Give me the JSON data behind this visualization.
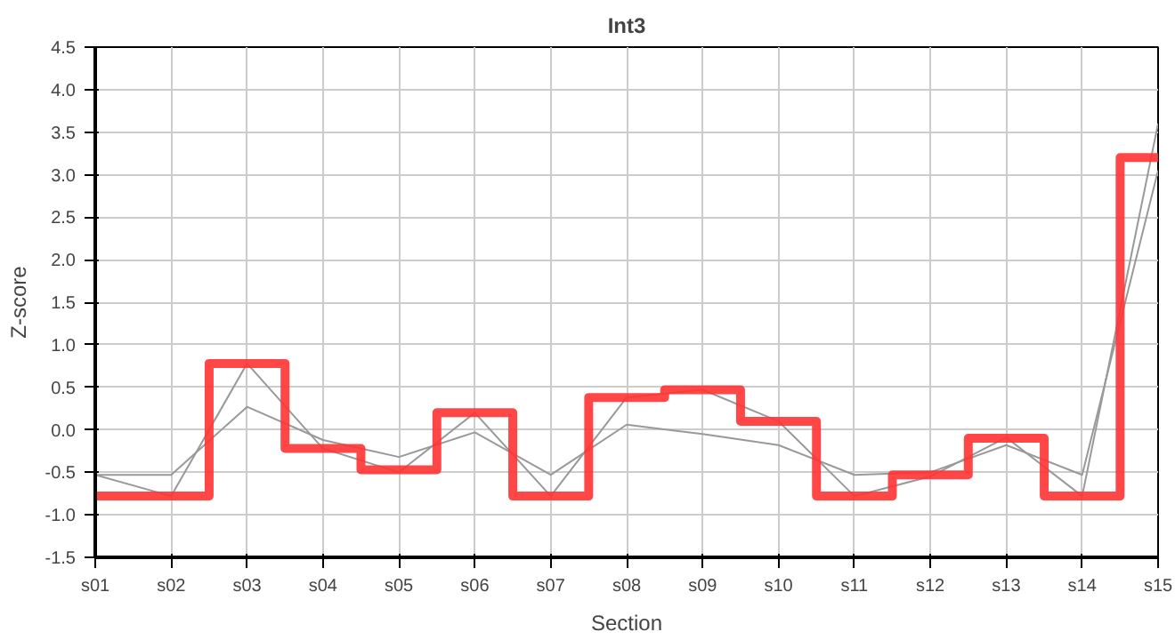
{
  "chart_data": {
    "type": "line",
    "title": "Int3",
    "xlabel": "Section",
    "ylabel": "Z-score",
    "categories": [
      "s01",
      "s02",
      "s03",
      "s04",
      "s05",
      "s06",
      "s07",
      "s08",
      "s09",
      "s10",
      "s11",
      "s12",
      "s13",
      "s14",
      "s15"
    ],
    "series": [
      {
        "color": "#999999",
        "values": [
          -0.53,
          -0.78,
          0.78,
          -0.22,
          -0.5,
          0.2,
          -0.78,
          0.38,
          0.47,
          0.1,
          -0.78,
          -0.55,
          -0.09,
          -0.78,
          3.6
        ]
      },
      {
        "color": "#999999",
        "values": [
          -0.53,
          -0.53,
          0.27,
          -0.12,
          -0.32,
          -0.03,
          -0.53,
          0.06,
          -0.05,
          -0.18,
          -0.53,
          -0.5,
          -0.18,
          -0.53,
          3.05
        ]
      },
      {
        "type": "step",
        "color": "#ff3333",
        "values": [
          -0.78,
          -0.78,
          0.78,
          -0.22,
          -0.47,
          0.2,
          -0.78,
          0.38,
          0.47,
          0.1,
          -0.78,
          -0.53,
          -0.1,
          -0.78,
          3.2
        ]
      }
    ],
    "ylim": [
      -1.5,
      4.5
    ],
    "yticks": [
      {
        "value": -1.5,
        "label": "-1.5"
      },
      {
        "value": -1,
        "label": "-1.0"
      },
      {
        "value": -0.5,
        "label": "-0.5"
      },
      {
        "value": 0,
        "label": "0.0"
      },
      {
        "value": 0.5,
        "label": "0.5"
      },
      {
        "value": 1,
        "label": "1.0"
      },
      {
        "value": 1.5,
        "label": "1.5"
      },
      {
        "value": 2,
        "label": "2.0"
      },
      {
        "value": 2.5,
        "label": "2.5"
      },
      {
        "value": 3,
        "label": "3.0"
      },
      {
        "value": 3.5,
        "label": "3.5"
      },
      {
        "value": 4,
        "label": "4.0"
      },
      {
        "value": 4.5,
        "label": "4.5"
      }
    ],
    "grid": true
  }
}
